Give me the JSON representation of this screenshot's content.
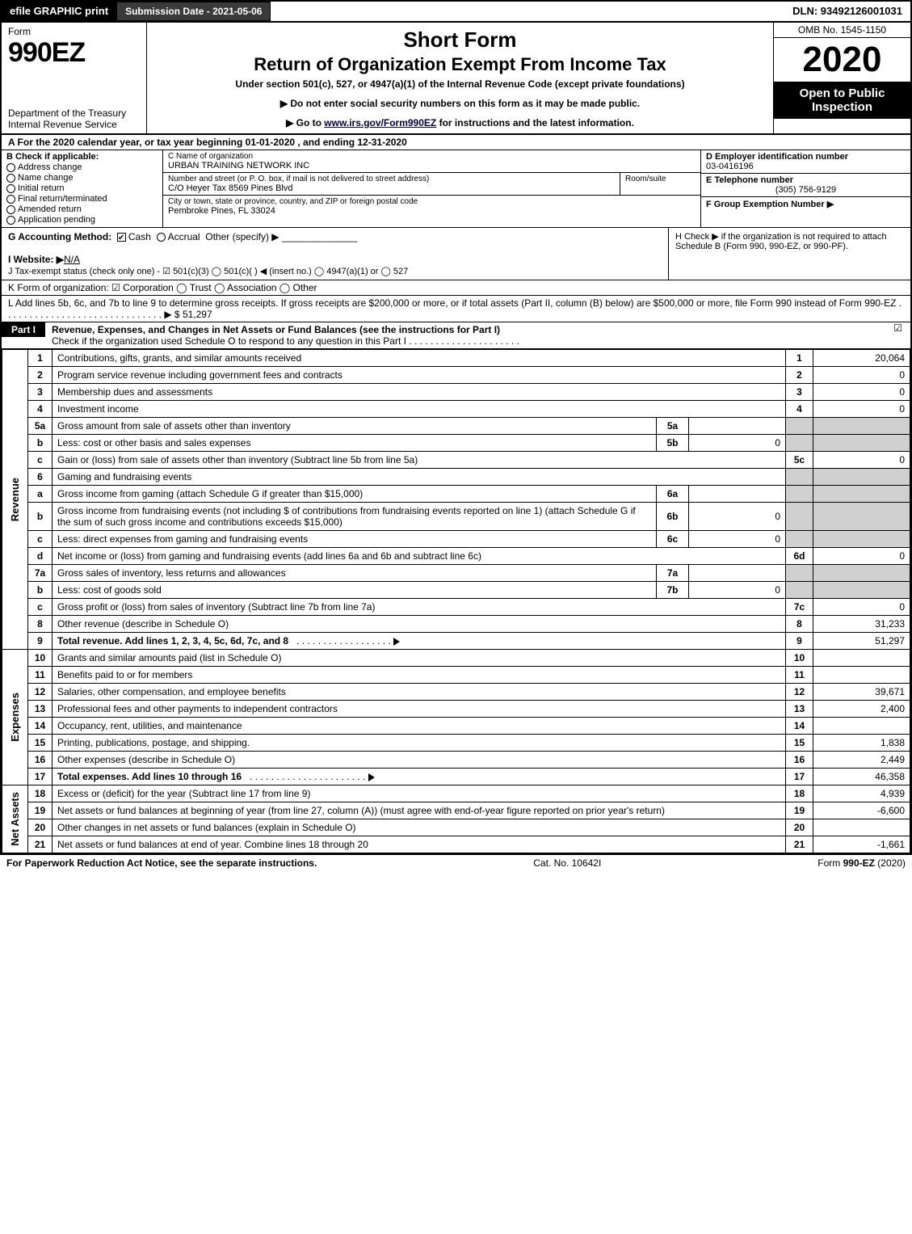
{
  "toprow": {
    "efile": "efile GRAPHIC print",
    "submission": "Submission Date - 2021-05-06",
    "dln": "DLN: 93492126001031"
  },
  "header": {
    "form_word": "Form",
    "form_num": "990EZ",
    "dept1": "Department of the Treasury",
    "dept2": "Internal Revenue Service",
    "short": "Short Form",
    "title2": "Return of Organization Exempt From Income Tax",
    "sub1": "Under section 501(c), 527, or 4947(a)(1) of the Internal Revenue Code (except private foundations)",
    "sub2": "▶ Do not enter social security numbers on this form as it may be made public.",
    "sub3_pre": "▶ Go to ",
    "sub3_link": "www.irs.gov/Form990EZ",
    "sub3_post": " for instructions and the latest information.",
    "omb": "OMB No. 1545-1150",
    "year": "2020",
    "insp1": "Open to Public",
    "insp2": "Inspection"
  },
  "calyear": "A For the 2020 calendar year, or tax year beginning 01-01-2020 , and ending 12-31-2020",
  "blockB": {
    "title": "B Check if applicable:",
    "items": [
      "Address change",
      "Name change",
      "Initial return",
      "Final return/terminated",
      "Amended return",
      "Application pending"
    ]
  },
  "blockC": {
    "label_name": "C Name of organization",
    "name": "URBAN TRAINING NETWORK INC",
    "label_addr": "Number and street (or P. O. box, if mail is not delivered to street address)",
    "addr": "C/O Heyer Tax 8569 Pines Blvd",
    "room_label": "Room/suite",
    "label_city": "City or town, state or province, country, and ZIP or foreign postal code",
    "city": "Pembroke Pines, FL  33024"
  },
  "blockD": {
    "d_label": "D Employer identification number",
    "d_val": "03-0416196",
    "e_label": "E Telephone number",
    "e_val": "(305) 756-9129",
    "f_label": "F Group Exemption Number  ▶"
  },
  "gRow": {
    "g": "G Accounting Method:",
    "g_cash": "Cash",
    "g_accrual": "Accrual",
    "g_other": "Other (specify) ▶",
    "h": "H  Check ▶      if the organization is not required to attach Schedule B (Form 990, 990-EZ, or 990-PF).",
    "i_label": "I Website: ▶",
    "i_val": "N/A",
    "j": "J Tax-exempt status (check only one) - ☑ 501(c)(3)  ◯ 501(c)( ) ◀ (insert no.)  ◯ 4947(a)(1) or  ◯ 527"
  },
  "kRow": "K Form of organization:   ☑ Corporation   ◯ Trust   ◯ Association   ◯ Other",
  "lRow": "L Add lines 5b, 6c, and 7b to line 9 to determine gross receipts. If gross receipts are $200,000 or more, or if total assets (Part II, column (B) below) are $500,000 or more, file Form 990 instead of Form 990-EZ . . . . . . . . . . . . . . . . . . . . . . . . . . . . . . ▶ $ 51,297",
  "partI": {
    "label": "Part I",
    "title": "Revenue, Expenses, and Changes in Net Assets or Fund Balances (see the instructions for Part I)",
    "sub": "Check if the organization used Schedule O to respond to any question in this Part I . . . . . . . . . . . . . . . . . . . . .",
    "checked": "☑"
  },
  "sideLabels": {
    "rev": "Revenue",
    "exp": "Expenses",
    "net": "Net Assets"
  },
  "lines": {
    "l1": {
      "n": "1",
      "t": "Contributions, gifts, grants, and similar amounts received",
      "ln": "1",
      "amt": "20,064"
    },
    "l2": {
      "n": "2",
      "t": "Program service revenue including government fees and contracts",
      "ln": "2",
      "amt": "0"
    },
    "l3": {
      "n": "3",
      "t": "Membership dues and assessments",
      "ln": "3",
      "amt": "0"
    },
    "l4": {
      "n": "4",
      "t": "Investment income",
      "ln": "4",
      "amt": "0"
    },
    "l5a": {
      "n": "5a",
      "t": "Gross amount from sale of assets other than inventory",
      "sub": "5a",
      "subamt": ""
    },
    "l5b": {
      "n": "b",
      "t": "Less: cost or other basis and sales expenses",
      "sub": "5b",
      "subamt": "0"
    },
    "l5c": {
      "n": "c",
      "t": "Gain or (loss) from sale of assets other than inventory (Subtract line 5b from line 5a)",
      "ln": "5c",
      "amt": "0"
    },
    "l6": {
      "n": "6",
      "t": "Gaming and fundraising events"
    },
    "l6a": {
      "n": "a",
      "t": "Gross income from gaming (attach Schedule G if greater than $15,000)",
      "sub": "6a",
      "subamt": ""
    },
    "l6b": {
      "n": "b",
      "t": "Gross income from fundraising events (not including $               of contributions from fundraising events reported on line 1) (attach Schedule G if the sum of such gross income and contributions exceeds $15,000)",
      "sub": "6b",
      "subamt": "0"
    },
    "l6c": {
      "n": "c",
      "t": "Less: direct expenses from gaming and fundraising events",
      "sub": "6c",
      "subamt": "0"
    },
    "l6d": {
      "n": "d",
      "t": "Net income or (loss) from gaming and fundraising events (add lines 6a and 6b and subtract line 6c)",
      "ln": "6d",
      "amt": "0"
    },
    "l7a": {
      "n": "7a",
      "t": "Gross sales of inventory, less returns and allowances",
      "sub": "7a",
      "subamt": ""
    },
    "l7b": {
      "n": "b",
      "t": "Less: cost of goods sold",
      "sub": "7b",
      "subamt": "0"
    },
    "l7c": {
      "n": "c",
      "t": "Gross profit or (loss) from sales of inventory (Subtract line 7b from line 7a)",
      "ln": "7c",
      "amt": "0"
    },
    "l8": {
      "n": "8",
      "t": "Other revenue (describe in Schedule O)",
      "ln": "8",
      "amt": "31,233"
    },
    "l9": {
      "n": "9",
      "t": "Total revenue. Add lines 1, 2, 3, 4, 5c, 6d, 7c, and 8",
      "ln": "9",
      "amt": "51,297",
      "bold": true,
      "arrow": true
    },
    "l10": {
      "n": "10",
      "t": "Grants and similar amounts paid (list in Schedule O)",
      "ln": "10",
      "amt": ""
    },
    "l11": {
      "n": "11",
      "t": "Benefits paid to or for members",
      "ln": "11",
      "amt": ""
    },
    "l12": {
      "n": "12",
      "t": "Salaries, other compensation, and employee benefits",
      "ln": "12",
      "amt": "39,671"
    },
    "l13": {
      "n": "13",
      "t": "Professional fees and other payments to independent contractors",
      "ln": "13",
      "amt": "2,400"
    },
    "l14": {
      "n": "14",
      "t": "Occupancy, rent, utilities, and maintenance",
      "ln": "14",
      "amt": ""
    },
    "l15": {
      "n": "15",
      "t": "Printing, publications, postage, and shipping.",
      "ln": "15",
      "amt": "1,838"
    },
    "l16": {
      "n": "16",
      "t": "Other expenses (describe in Schedule O)",
      "ln": "16",
      "amt": "2,449"
    },
    "l17": {
      "n": "17",
      "t": "Total expenses. Add lines 10 through 16",
      "ln": "17",
      "amt": "46,358",
      "bold": true,
      "arrow": true
    },
    "l18": {
      "n": "18",
      "t": "Excess or (deficit) for the year (Subtract line 17 from line 9)",
      "ln": "18",
      "amt": "4,939"
    },
    "l19": {
      "n": "19",
      "t": "Net assets or fund balances at beginning of year (from line 27, column (A)) (must agree with end-of-year figure reported on prior year's return)",
      "ln": "19",
      "amt": "-6,600"
    },
    "l20": {
      "n": "20",
      "t": "Other changes in net assets or fund balances (explain in Schedule O)",
      "ln": "20",
      "amt": ""
    },
    "l21": {
      "n": "21",
      "t": "Net assets or fund balances at end of year. Combine lines 18 through 20",
      "ln": "21",
      "amt": "-1,661"
    }
  },
  "footer": {
    "left": "For Paperwork Reduction Act Notice, see the separate instructions.",
    "mid": "Cat. No. 10642I",
    "right": "Form 990-EZ (2020)"
  },
  "colors": {
    "black": "#000000",
    "gray_cell": "#d0d0d0",
    "link": "#000088"
  }
}
